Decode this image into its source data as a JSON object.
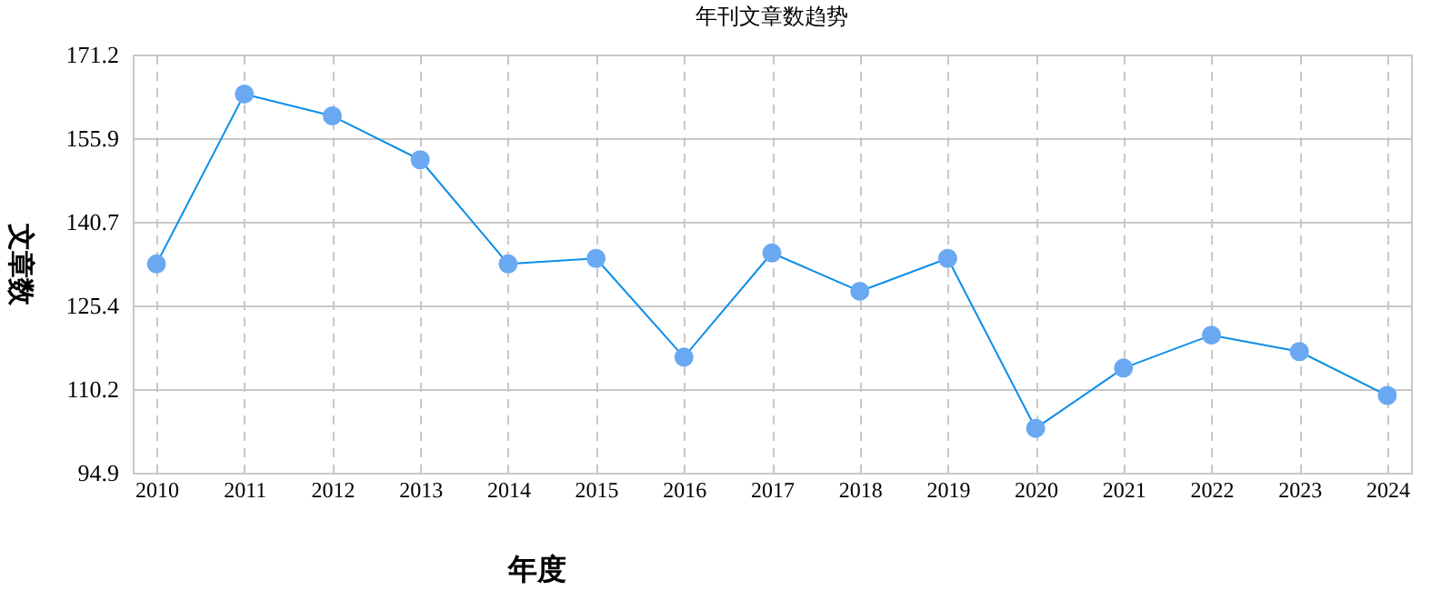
{
  "chart_data": {
    "type": "line",
    "title": "年刊文章数趋势",
    "xlabel": "年度",
    "ylabel": "文章数",
    "categories": [
      "2010",
      "2011",
      "2012",
      "2013",
      "2014",
      "2015",
      "2016",
      "2017",
      "2018",
      "2019",
      "2020",
      "2021",
      "2022",
      "2023",
      "2024"
    ],
    "series": [
      {
        "color": "#0d8ee9",
        "values": [
          133,
          164,
          160,
          152,
          133,
          134,
          116,
          135,
          128,
          134,
          103,
          114,
          120,
          117,
          109
        ]
      }
    ],
    "ylim": [
      94.9,
      171.2
    ],
    "yticks": [
      94.9,
      110.2,
      125.4,
      140.7,
      155.9,
      171.2
    ],
    "grid": true,
    "marker": "circle",
    "line_style": "solid"
  }
}
